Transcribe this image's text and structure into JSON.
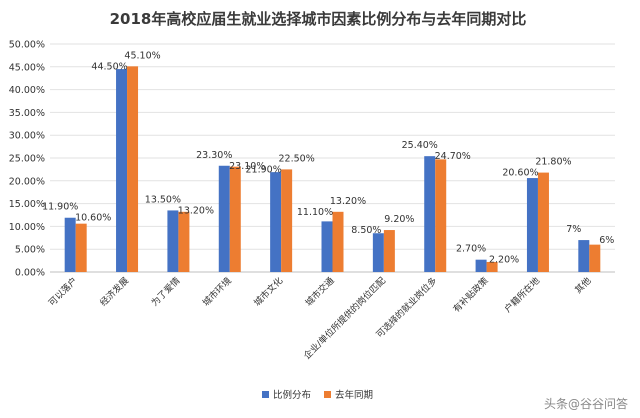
{
  "chart_data": {
    "type": "bar",
    "title": "2018年高校应届生就业选择城市因素比例分布与去年同期对比",
    "categories": [
      "可以落户",
      "经济发展",
      "为了爱情",
      "城市环境",
      "城市文化",
      "城市交通",
      "企业/单位所提供的岗位匹配",
      "可选择的就业岗位多",
      "有补贴政策",
      "户籍所在地",
      "其他"
    ],
    "series": [
      {
        "name": "比例分布",
        "color": "#4472c4",
        "values": [
          11.9,
          44.5,
          13.5,
          23.3,
          21.9,
          11.1,
          8.5,
          25.4,
          2.7,
          20.6,
          7
        ],
        "labels": [
          "11.90%",
          "44.50%",
          "13.50%",
          "23.30%",
          "21.90%",
          "11.10%",
          "8.50%",
          "25.40%",
          "2.70%",
          "20.60%",
          "7%"
        ]
      },
      {
        "name": "去年同期",
        "color": "#ed7d31",
        "values": [
          10.6,
          45.1,
          13.2,
          23.1,
          22.5,
          13.2,
          9.2,
          24.7,
          2.2,
          21.8,
          6
        ],
        "labels": [
          "10.60%",
          "45.10%",
          "13.20%",
          "23.10%",
          "22.50%",
          "13.20%",
          "9.20%",
          "24.70%",
          "2.20%",
          "21.80%",
          "6%"
        ]
      }
    ],
    "yticks": [
      "0.00%",
      "5.00%",
      "10.00%",
      "15.00%",
      "20.00%",
      "25.00%",
      "30.00%",
      "35.00%",
      "40.00%",
      "45.00%",
      "50.00%"
    ],
    "ylim": [
      0,
      50
    ],
    "legend_position": "bottom-center",
    "grid": true
  },
  "watermark": "头条@谷谷问答"
}
